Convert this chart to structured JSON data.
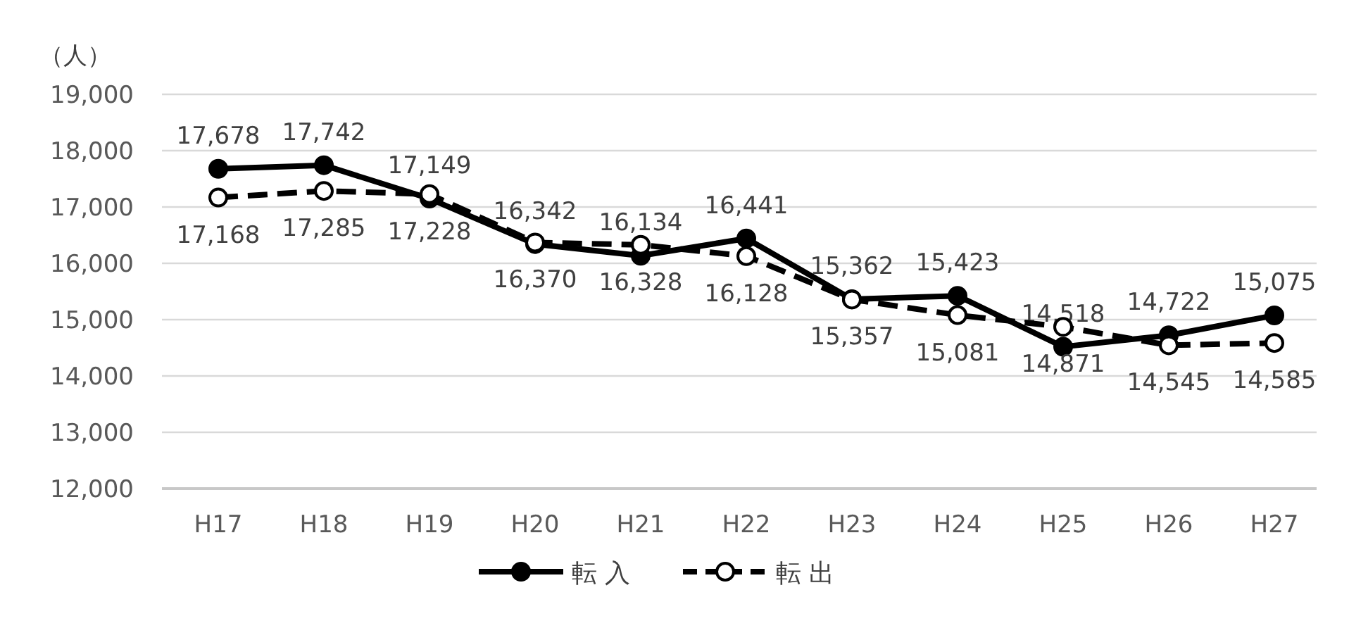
{
  "chart_data": {
    "type": "line",
    "ylabel": "（人）",
    "categories": [
      "H17",
      "H18",
      "H19",
      "H20",
      "H21",
      "H22",
      "H23",
      "H24",
      "H25",
      "H26",
      "H27"
    ],
    "series": [
      {
        "name": "転 入",
        "color": "#000000",
        "marker": "circle",
        "line_style": "solid",
        "values": [
          17678,
          17742,
          17149,
          16342,
          16134,
          16441,
          15362,
          15423,
          14518,
          14722,
          15075
        ],
        "value_labels": [
          "17,678",
          "17,742",
          "17,149",
          "16,342",
          "16,134",
          "16,441",
          "15,362",
          "15,423",
          "14,518",
          "14,722",
          "15,075"
        ]
      },
      {
        "name": "転 出",
        "color": "#000000",
        "marker": "circle",
        "line_style": "dashed",
        "values": [
          17168,
          17285,
          17228,
          16370,
          16328,
          16128,
          15357,
          15081,
          14871,
          14545,
          14585
        ],
        "value_labels": [
          "17,168",
          "17,285",
          "17,228",
          "16,370",
          "16,328",
          "16,128",
          "15,357",
          "15,081",
          "14,871",
          "14,545",
          "14,585"
        ]
      }
    ],
    "ylim": [
      12000,
      19000
    ],
    "yticks": [
      {
        "value": 12000,
        "label": "12,000"
      },
      {
        "value": 13000,
        "label": "13,000"
      },
      {
        "value": 14000,
        "label": "14,000"
      },
      {
        "value": 15000,
        "label": "15,000"
      },
      {
        "value": 16000,
        "label": "16,000"
      },
      {
        "value": 17000,
        "label": "17,000"
      },
      {
        "value": 18000,
        "label": "18,000"
      },
      {
        "value": 19000,
        "label": "19,000"
      }
    ],
    "grid": "y",
    "legend": "bottom"
  }
}
